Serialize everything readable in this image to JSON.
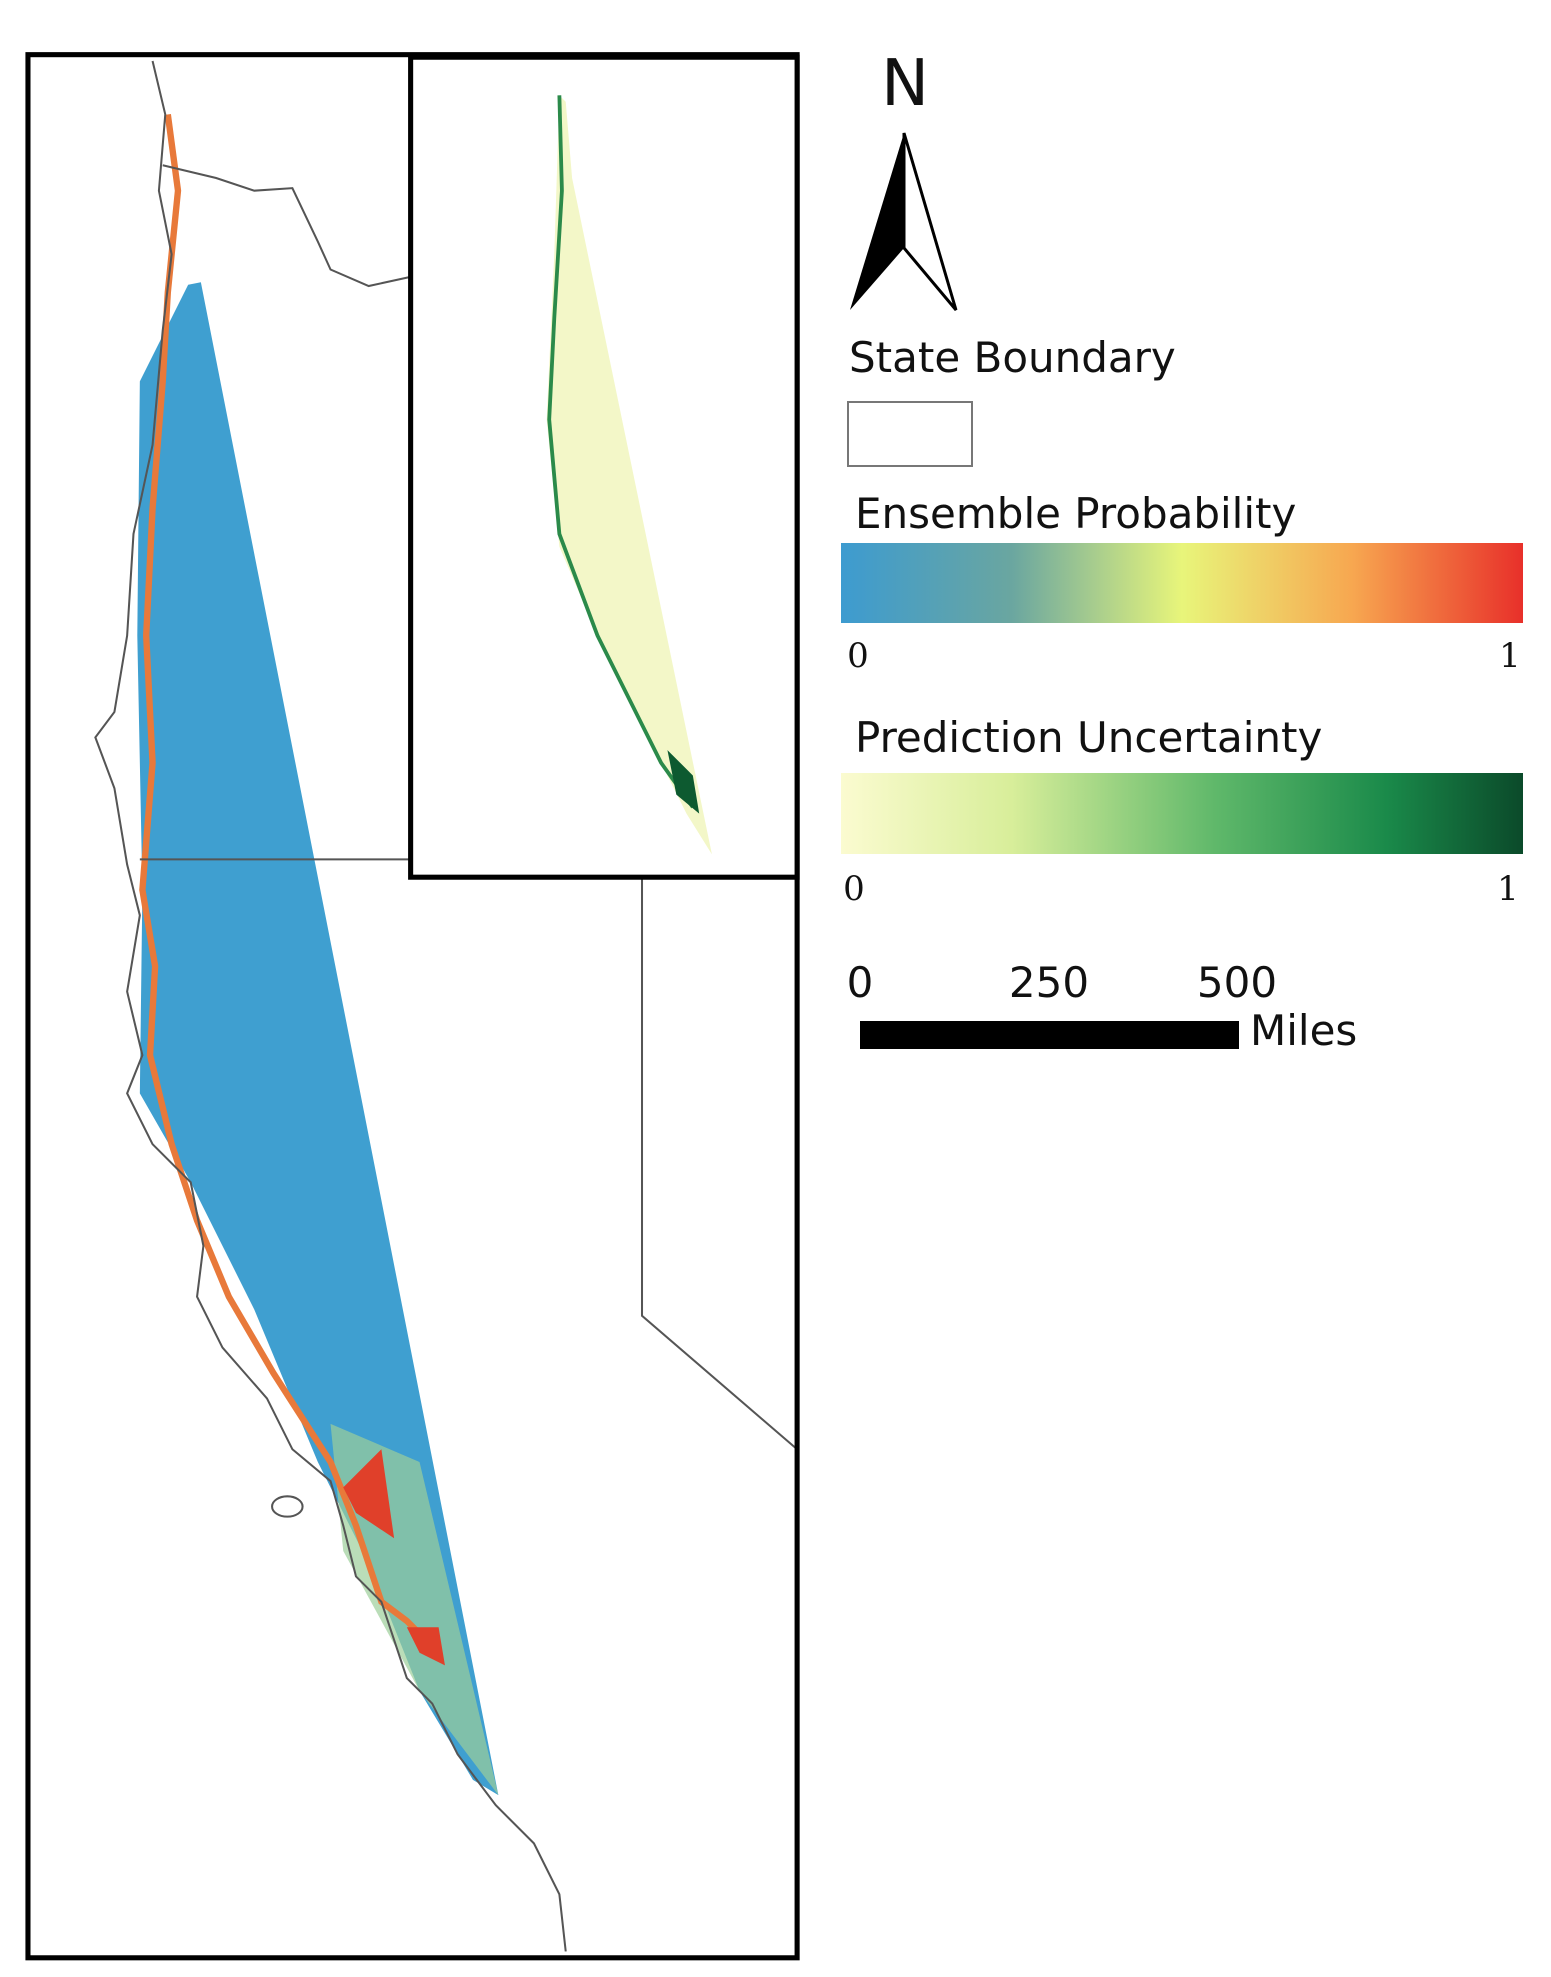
{
  "north_arrow": "N",
  "legend": {
    "state_boundary": "State Boundary",
    "ensemble_probability": {
      "title": "Ensemble Probability",
      "min": "0",
      "max": "1"
    },
    "prediction_uncertainty": {
      "title": "Prediction Uncertainty",
      "min": "0",
      "max": "1"
    }
  },
  "scale_bar": {
    "ticks": [
      "0",
      "250",
      "500"
    ],
    "unit": "Miles"
  }
}
